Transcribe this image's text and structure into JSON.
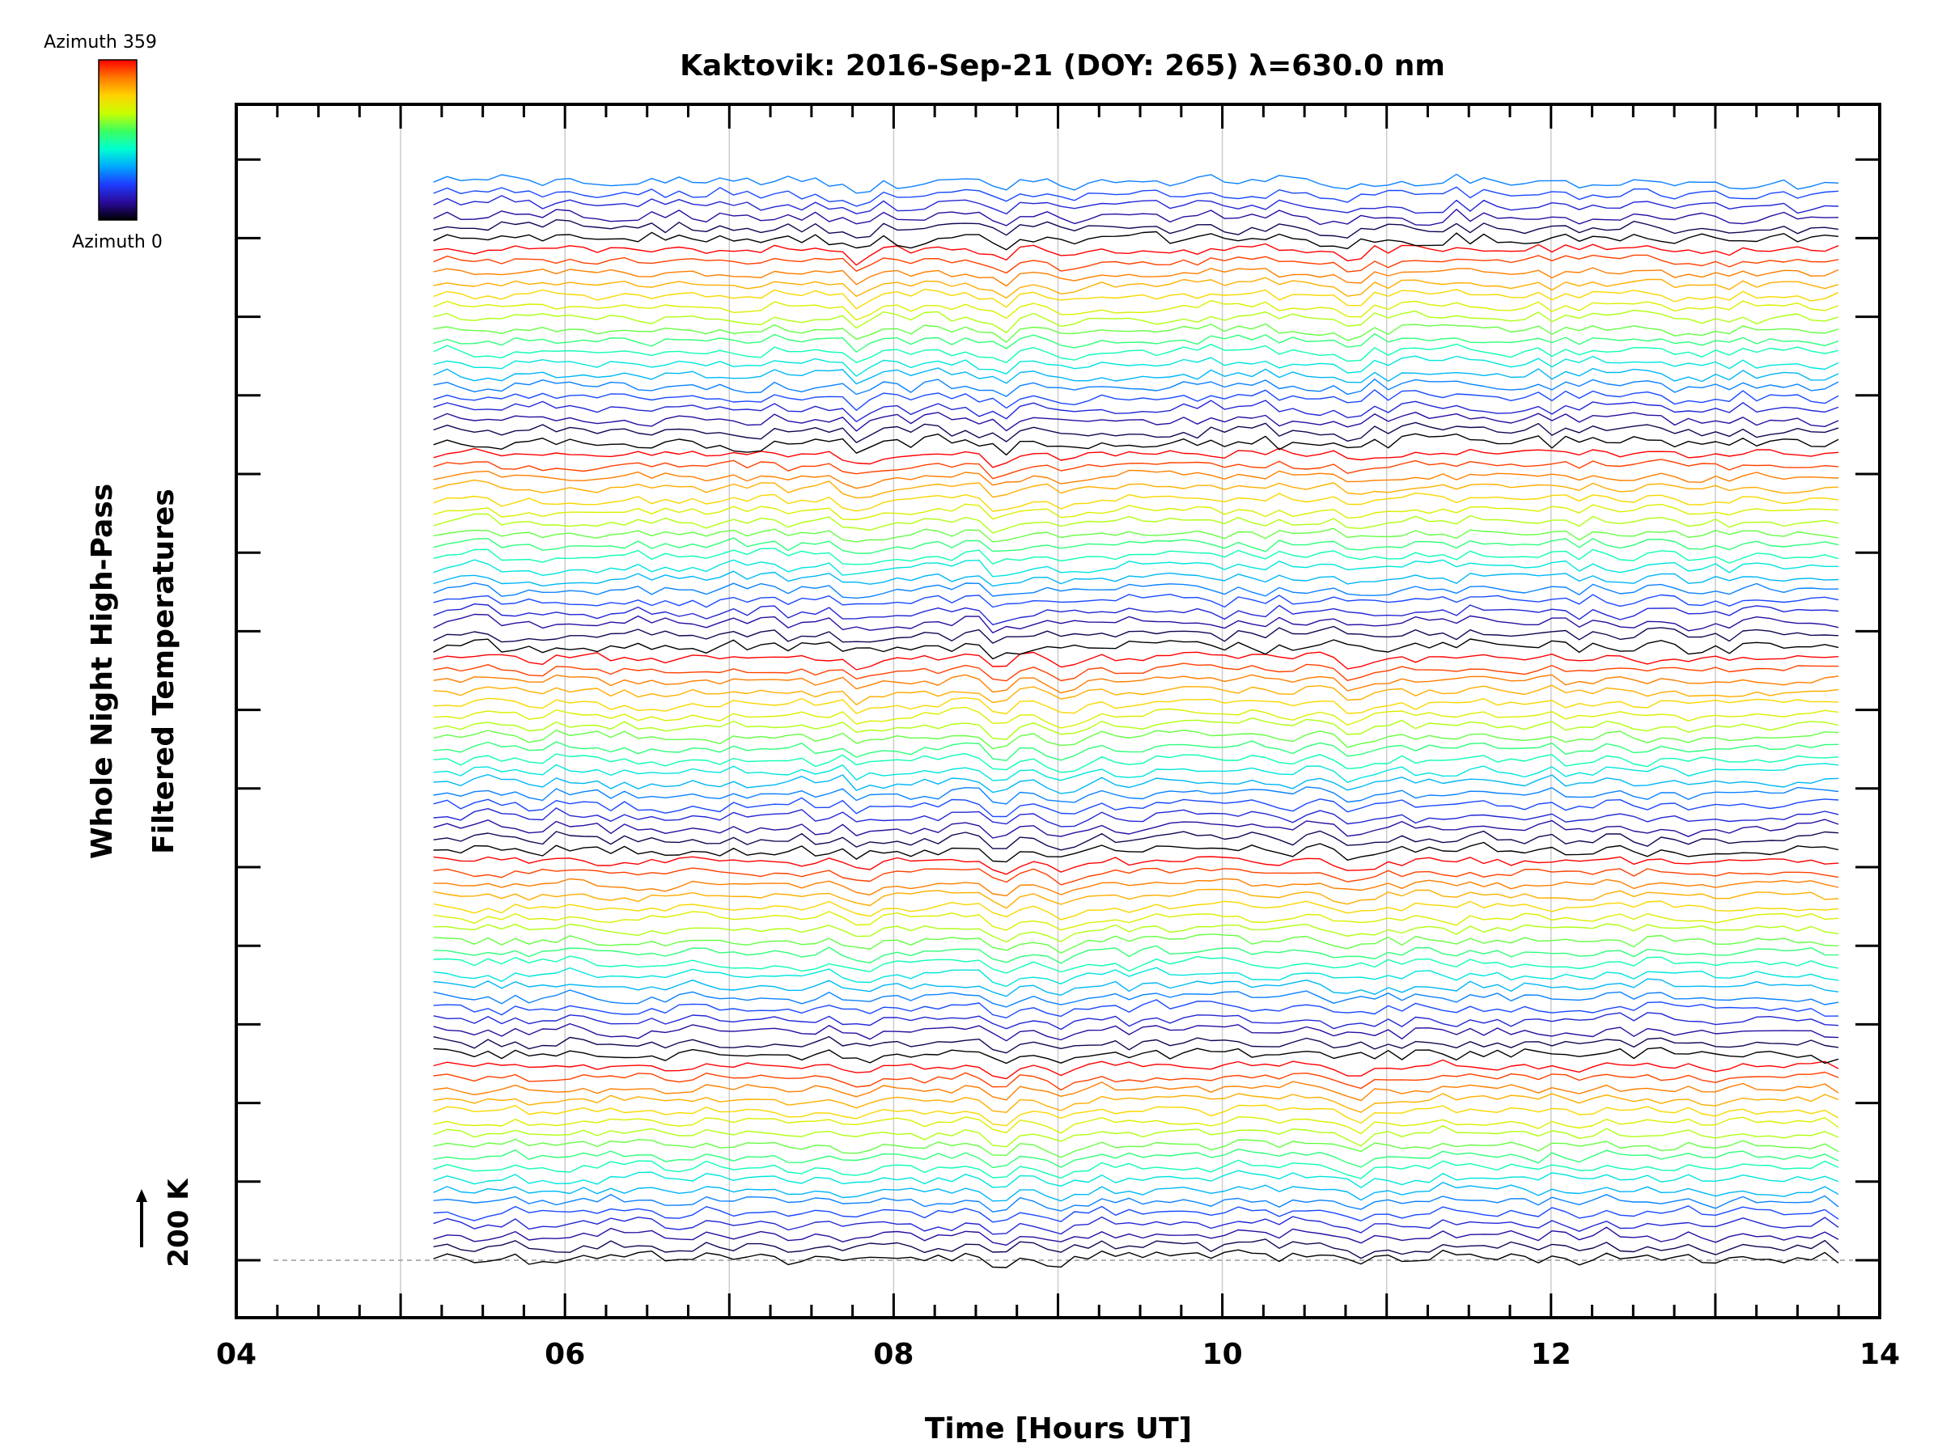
{
  "chart_data": {
    "type": "line",
    "title": "Kaktovik: 2016-Sep-21 (DOY: 265) λ=630.0 nm",
    "xlabel": "Time [Hours UT]",
    "ylabel_line1": "Whole Night High-Pass",
    "ylabel_line2": "Filtered Temperatures",
    "scale_label": "200 K",
    "xlim": [
      4,
      14
    ],
    "x_ticks": [
      "04",
      "06",
      "08",
      "10",
      "12",
      "14"
    ],
    "x_tick_values": [
      4,
      6,
      8,
      10,
      12,
      14
    ],
    "x_minor_step": 0.25,
    "grid_x_values": [
      5,
      6,
      7,
      8,
      9,
      10,
      11,
      12,
      13
    ],
    "grid": true,
    "data_start_hour": 5.2,
    "data_end_hour": 13.8,
    "sample_step_hours": 0.083,
    "trace_count": 96,
    "traces_per_group": 18,
    "azimuth_range": [
      0,
      359
    ],
    "common_dips_hours": [
      7.8,
      8.65,
      9.05,
      10.8
    ],
    "colorbar": {
      "top_label": "Azimuth 359",
      "bottom_label": "Azimuth 0",
      "colors": [
        "#ff0000",
        "#ff7a00",
        "#ffd200",
        "#c8ff00",
        "#3cff60",
        "#00ffd0",
        "#00a8ff",
        "#1e3cff",
        "#2a0a9a",
        "#000000"
      ]
    },
    "grid_color": "#cccccc",
    "axis_color": "#000000"
  }
}
